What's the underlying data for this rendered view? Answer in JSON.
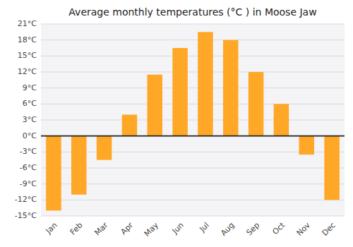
{
  "chart_data": {
    "type": "bar",
    "title": "Average monthly temperatures (°C ) in Moose Jaw",
    "categories": [
      "Jan",
      "Feb",
      "Mar",
      "Apr",
      "May",
      "Jun",
      "Jul",
      "Aug",
      "Sep",
      "Oct",
      "Nov",
      "Dec"
    ],
    "values": [
      -14.0,
      -11.0,
      -4.5,
      4.0,
      11.5,
      16.5,
      19.5,
      18.0,
      12.0,
      6.0,
      -3.5,
      -12.0
    ],
    "color": "#FFA726",
    "ylim": [
      -15,
      21
    ],
    "yticks": [
      {
        "value": -15,
        "label": "-15°C"
      },
      {
        "value": -12,
        "label": "-12°C"
      },
      {
        "value": -9,
        "label": "-9°C"
      },
      {
        "value": -6,
        "label": "-6°C"
      },
      {
        "value": -3,
        "label": "-3°C"
      },
      {
        "value": 0,
        "label": "0°C"
      },
      {
        "value": 3,
        "label": "3°C"
      },
      {
        "value": 6,
        "label": "6°C"
      },
      {
        "value": 9,
        "label": "9°C"
      },
      {
        "value": 12,
        "label": "12°C"
      },
      {
        "value": 15,
        "label": "15°C"
      },
      {
        "value": 18,
        "label": "18°C"
      },
      {
        "value": 21,
        "label": "21°C"
      }
    ],
    "grid": true
  }
}
